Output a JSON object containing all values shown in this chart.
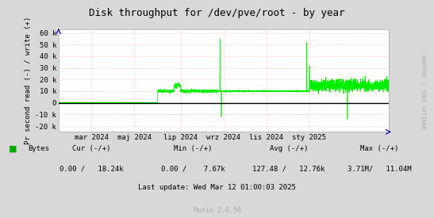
{
  "title": "Disk throughput for /dev/pve/root - by year",
  "ylabel": "Pr second read (-) / write (+)",
  "yticks": [
    -20000,
    -10000,
    0,
    10000,
    20000,
    30000,
    40000,
    50000,
    60000
  ],
  "ytick_labels": [
    "-20 k",
    "-10 k",
    "0",
    "10 k",
    "20 k",
    "30 k",
    "40 k",
    "50 k",
    "60 k"
  ],
  "ylim": [
    -25000,
    63000
  ],
  "bg_color": "#d8d8d8",
  "plot_bg_color": "#ffffff",
  "line_color": "#00ee00",
  "zero_line_color": "#000000",
  "legend_label": "Bytes",
  "legend_color": "#00aa00",
  "footer_cur_label": "Cur (-/+)",
  "footer_cur_val": "0.00 /   18.24k",
  "footer_min_label": "Min (-/+)",
  "footer_min_val": "0.00 /    7.67k",
  "footer_avg_label": "Avg (-/+)",
  "footer_avg_val": "127.48 /   12.76k",
  "footer_max_label": "Max (-/+)",
  "footer_max_val": "3.71M/   11.04M",
  "footer_update": "Last update: Wed Mar 12 01:00:03 2025",
  "munin_label": "Munin 2.0.56",
  "rrdtool_label": "RRDTOOL / TOBI OETIKER",
  "x_tick_labels": [
    "mar 2024",
    "maj 2024",
    "lip 2024",
    "wrz 2024",
    "lis 2024",
    "sty 2025"
  ],
  "x_tick_positions": [
    0.1,
    0.23,
    0.37,
    0.5,
    0.63,
    0.76
  ],
  "grid_pink": "#ff9999",
  "grid_light": "#ffdddd",
  "arrow_color": "#0000bb"
}
